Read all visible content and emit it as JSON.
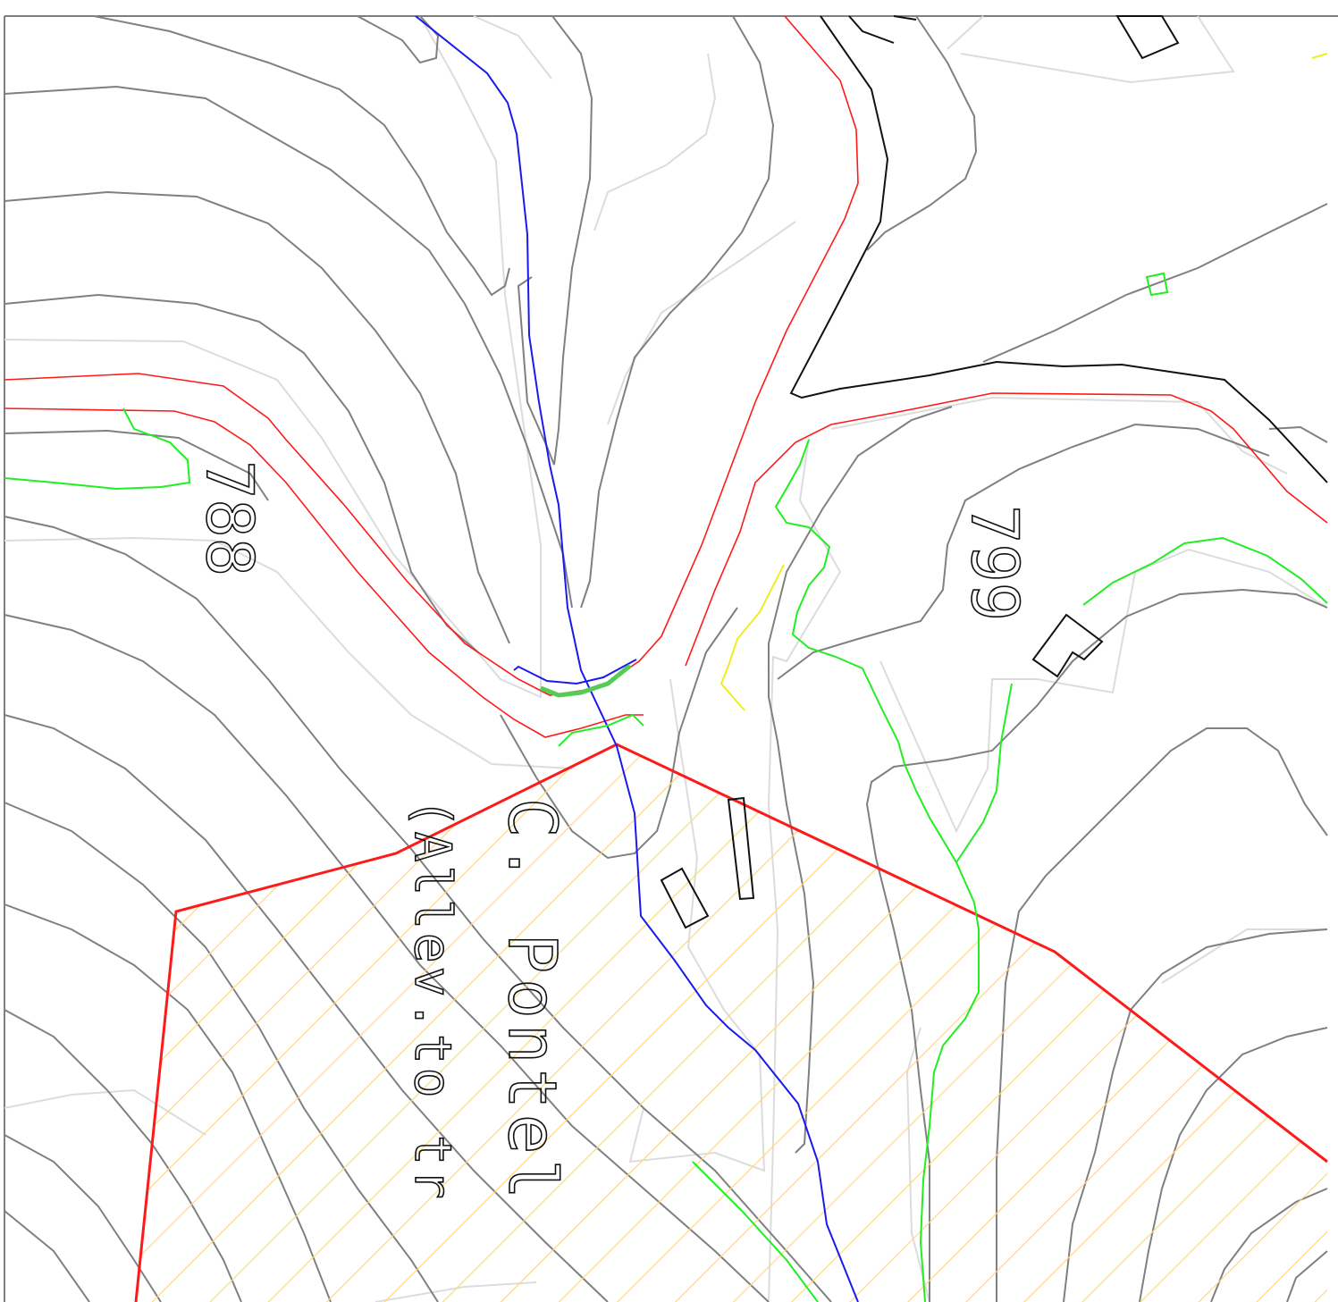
{
  "labels": {
    "contour_788": "788",
    "contour_799": "799",
    "place_name": "C. Pontel",
    "place_note": "(Allev.to tr"
  }
}
